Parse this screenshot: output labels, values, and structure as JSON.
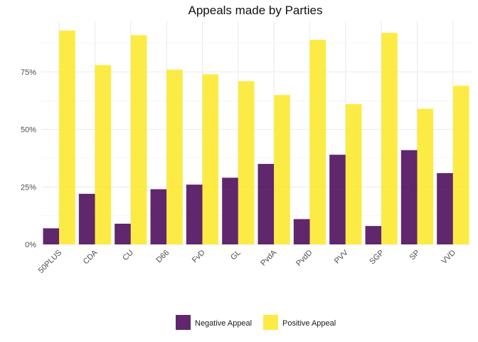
{
  "chart_data": {
    "type": "bar",
    "title": "Appeals made by Parties",
    "xlabel": "",
    "ylabel": "",
    "categories": [
      "50PLUS",
      "CDA",
      "CU",
      "D66",
      "FvD",
      "GL",
      "PvdA",
      "PvdD",
      "PVV",
      "SGP",
      "SP",
      "VVD"
    ],
    "series": [
      {
        "name": "Negative Appeal",
        "color": "#440154",
        "values": [
          0.07,
          0.22,
          0.09,
          0.24,
          0.26,
          0.29,
          0.35,
          0.11,
          0.39,
          0.08,
          0.41,
          0.31
        ]
      },
      {
        "name": "Positive Appeal",
        "color": "#fde725",
        "values": [
          0.93,
          0.78,
          0.91,
          0.76,
          0.74,
          0.71,
          0.65,
          0.89,
          0.61,
          0.92,
          0.59,
          0.69
        ]
      }
    ],
    "ylim": [
      0,
      0.97
    ],
    "yticks": [
      0,
      0.25,
      0.5,
      0.75
    ],
    "ytick_labels": [
      "0%",
      "25%",
      "50%",
      "75%"
    ],
    "grid": true,
    "legend_position": "bottom"
  }
}
